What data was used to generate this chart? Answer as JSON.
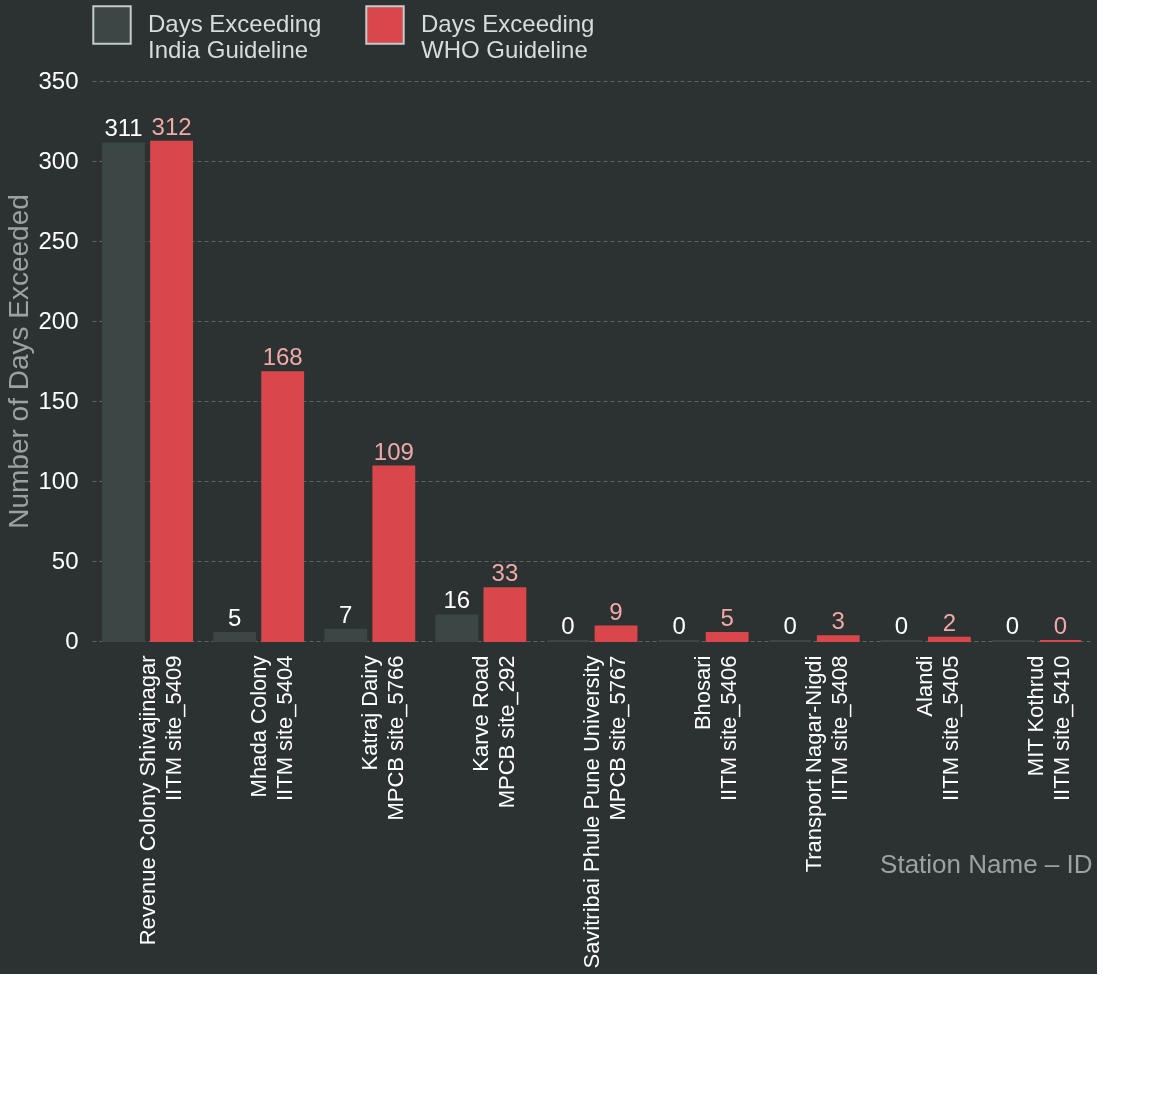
{
  "chart_data": {
    "type": "bar",
    "xlabel": "Station Name – ID",
    "ylabel": "Number of Days Exceeded",
    "categories": [
      "Revenue Colony Shivajinagar\nIITM site_5409",
      "Mhada Colony\nIITM site_5404",
      "Katraj Dairy\nMPCB site_5766",
      "Karve Road\nMPCB site_292",
      "Savitribai Phule Pune University\nMPCB site_5767",
      "Bhosari\nIITM site_5406",
      "Transport Nagar-Nigdi\nIITM site_5408",
      "Alandi\nIITM site_5405",
      "MIT Kothrud\nIITM site_5410"
    ],
    "series": [
      {
        "name": "Days Exceeding\nIndia Guideline",
        "color": "#3b4645",
        "values": [
          311,
          5,
          7,
          16,
          0,
          0,
          0,
          0,
          0
        ]
      },
      {
        "name": "Days Exceeding\nWHO Guideline",
        "color": "#d9474b",
        "values": [
          312,
          168,
          109,
          33,
          9,
          5,
          3,
          2,
          0
        ]
      }
    ],
    "ylim": [
      0,
      350
    ],
    "yticks": [
      0,
      50,
      100,
      150,
      200,
      250,
      300,
      350
    ],
    "grid": "y",
    "legend": "top",
    "data_labels": true
  }
}
